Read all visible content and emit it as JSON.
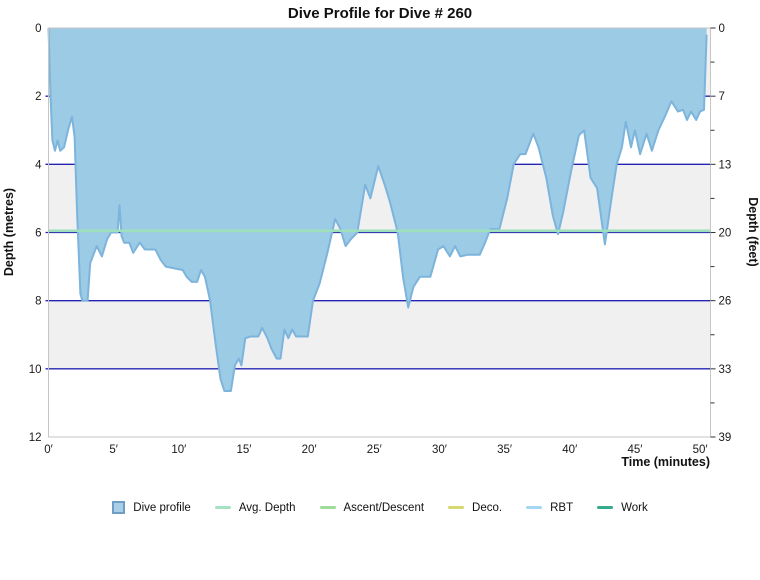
{
  "title": "Dive Profile for Dive # 260",
  "axes": {
    "x": {
      "label": "Time (minutes)",
      "tick_values": [
        0,
        5,
        10,
        15,
        20,
        25,
        30,
        35,
        40,
        45,
        50
      ],
      "tick_labels": [
        "0′",
        "5′",
        "10′",
        "15′",
        "20′",
        "25′",
        "30′",
        "35′",
        "40′",
        "45′",
        "50′"
      ]
    },
    "y_left": {
      "label": "Depth (metres)",
      "tick_values": [
        0,
        2,
        4,
        6,
        8,
        10,
        12
      ],
      "tick_labels": [
        "0",
        "2",
        "4",
        "6",
        "8",
        "10",
        "12"
      ]
    },
    "y_right": {
      "label": "Depth (feet)",
      "tick_values_m": [
        0,
        2,
        4,
        6,
        8,
        10,
        12
      ],
      "tick_labels": [
        "0",
        "7",
        "13",
        "20",
        "26",
        "33",
        "39"
      ],
      "minor_tick_values_m": [
        1,
        3,
        5,
        7,
        9,
        11
      ]
    }
  },
  "chart_data": {
    "type": "area",
    "title": "Dive Profile for Dive # 260",
    "xlabel": "Time (minutes)",
    "ylabel_left": "Depth (metres)",
    "ylabel_right": "Depth (feet)",
    "xlim": [
      0,
      50.8
    ],
    "ylim_m": [
      0,
      12
    ],
    "grid_metres": [
      2,
      4,
      6,
      8,
      10
    ],
    "gray_band_start_metres": [
      0,
      4,
      8
    ],
    "avg_depth_m": 5.95,
    "series": [
      {
        "name": "Dive profile",
        "units": {
          "x": "minutes",
          "y": "metres"
        },
        "points": [
          [
            0.0,
            0.0
          ],
          [
            0.15,
            2.0
          ],
          [
            0.3,
            3.3
          ],
          [
            0.5,
            3.6
          ],
          [
            0.7,
            3.3
          ],
          [
            0.9,
            3.6
          ],
          [
            1.2,
            3.5
          ],
          [
            1.5,
            3.0
          ],
          [
            1.8,
            2.6
          ],
          [
            2.0,
            3.2
          ],
          [
            2.2,
            5.5
          ],
          [
            2.45,
            7.8
          ],
          [
            2.6,
            8.0
          ],
          [
            3.0,
            8.0
          ],
          [
            3.2,
            6.9
          ],
          [
            3.7,
            6.4
          ],
          [
            4.1,
            6.7
          ],
          [
            4.5,
            6.2
          ],
          [
            4.8,
            6.0
          ],
          [
            5.3,
            6.0
          ],
          [
            5.45,
            5.2
          ],
          [
            5.6,
            6.1
          ],
          [
            5.8,
            6.3
          ],
          [
            6.2,
            6.3
          ],
          [
            6.5,
            6.6
          ],
          [
            7.0,
            6.3
          ],
          [
            7.4,
            6.5
          ],
          [
            8.2,
            6.5
          ],
          [
            8.6,
            6.8
          ],
          [
            9.0,
            7.0
          ],
          [
            10.3,
            7.1
          ],
          [
            10.6,
            7.3
          ],
          [
            11.0,
            7.45
          ],
          [
            11.4,
            7.45
          ],
          [
            11.7,
            7.1
          ],
          [
            12.0,
            7.3
          ],
          [
            12.4,
            8.0
          ],
          [
            12.8,
            9.2
          ],
          [
            13.2,
            10.3
          ],
          [
            13.5,
            10.65
          ],
          [
            14.0,
            10.65
          ],
          [
            14.3,
            9.9
          ],
          [
            14.6,
            9.7
          ],
          [
            14.8,
            9.9
          ],
          [
            15.1,
            9.1
          ],
          [
            15.5,
            9.05
          ],
          [
            16.1,
            9.05
          ],
          [
            16.4,
            8.8
          ],
          [
            16.8,
            9.1
          ],
          [
            17.1,
            9.4
          ],
          [
            17.5,
            9.7
          ],
          [
            17.8,
            9.7
          ],
          [
            18.1,
            8.85
          ],
          [
            18.4,
            9.1
          ],
          [
            18.7,
            8.85
          ],
          [
            19.0,
            9.05
          ],
          [
            19.9,
            9.05
          ],
          [
            20.3,
            8.0
          ],
          [
            20.8,
            7.5
          ],
          [
            21.4,
            6.6
          ],
          [
            22.0,
            5.6
          ],
          [
            22.4,
            5.9
          ],
          [
            22.8,
            6.4
          ],
          [
            23.2,
            6.2
          ],
          [
            23.7,
            6.0
          ],
          [
            24.3,
            4.6
          ],
          [
            24.7,
            5.0
          ],
          [
            25.3,
            4.05
          ],
          [
            25.8,
            4.6
          ],
          [
            26.2,
            5.1
          ],
          [
            26.8,
            6.0
          ],
          [
            27.2,
            7.3
          ],
          [
            27.6,
            8.2
          ],
          [
            28.0,
            7.6
          ],
          [
            28.5,
            7.3
          ],
          [
            29.3,
            7.3
          ],
          [
            29.9,
            6.5
          ],
          [
            30.3,
            6.4
          ],
          [
            30.8,
            6.7
          ],
          [
            31.2,
            6.4
          ],
          [
            31.6,
            6.7
          ],
          [
            32.2,
            6.65
          ],
          [
            33.1,
            6.65
          ],
          [
            33.5,
            6.3
          ],
          [
            33.9,
            5.9
          ],
          [
            34.6,
            5.9
          ],
          [
            35.2,
            5.0
          ],
          [
            35.7,
            4.0
          ],
          [
            36.2,
            3.7
          ],
          [
            36.6,
            3.7
          ],
          [
            37.2,
            3.1
          ],
          [
            37.6,
            3.5
          ],
          [
            38.2,
            4.4
          ],
          [
            38.7,
            5.5
          ],
          [
            39.1,
            6.05
          ],
          [
            39.5,
            5.4
          ],
          [
            40.1,
            4.2
          ],
          [
            40.7,
            3.15
          ],
          [
            41.1,
            3.0
          ],
          [
            41.6,
            4.4
          ],
          [
            42.1,
            4.7
          ],
          [
            42.7,
            6.35
          ],
          [
            43.2,
            5.0
          ],
          [
            43.6,
            4.0
          ],
          [
            44.0,
            3.5
          ],
          [
            44.3,
            2.75
          ],
          [
            44.7,
            3.5
          ],
          [
            45.0,
            3.0
          ],
          [
            45.4,
            3.7
          ],
          [
            45.9,
            3.1
          ],
          [
            46.3,
            3.6
          ],
          [
            46.8,
            3.0
          ],
          [
            47.3,
            2.6
          ],
          [
            47.8,
            2.15
          ],
          [
            48.3,
            2.45
          ],
          [
            48.7,
            2.4
          ],
          [
            49.0,
            2.7
          ],
          [
            49.3,
            2.45
          ],
          [
            49.7,
            2.7
          ],
          [
            50.0,
            2.45
          ],
          [
            50.3,
            2.4
          ],
          [
            50.5,
            0.2
          ]
        ]
      }
    ]
  },
  "legend": {
    "items": [
      {
        "label": "Dive profile",
        "swatch": "square",
        "color": "#a9cfe8",
        "border": "#6f9ec4"
      },
      {
        "label": "Avg. Depth",
        "swatch": "line",
        "color": "#a7e1c4"
      },
      {
        "label": "Ascent/Descent",
        "swatch": "line",
        "color": "#9fdc9b"
      },
      {
        "label": "Deco.",
        "swatch": "line",
        "color": "#d6d96f"
      },
      {
        "label": "RBT",
        "swatch": "line",
        "color": "#a7d7f0"
      },
      {
        "label": "Work",
        "swatch": "line",
        "color": "#35ab8e"
      }
    ]
  },
  "colors": {
    "profile_fill": "#9bcbe5",
    "profile_line": "#7db4dc",
    "gridline": "#2424b0",
    "avg_depth_line": "#9fe0bc",
    "band_gray": "#f0f0f1",
    "band_white": "#ffffff",
    "plot_border": "#c6c6c6",
    "tick_color": "#333333"
  }
}
